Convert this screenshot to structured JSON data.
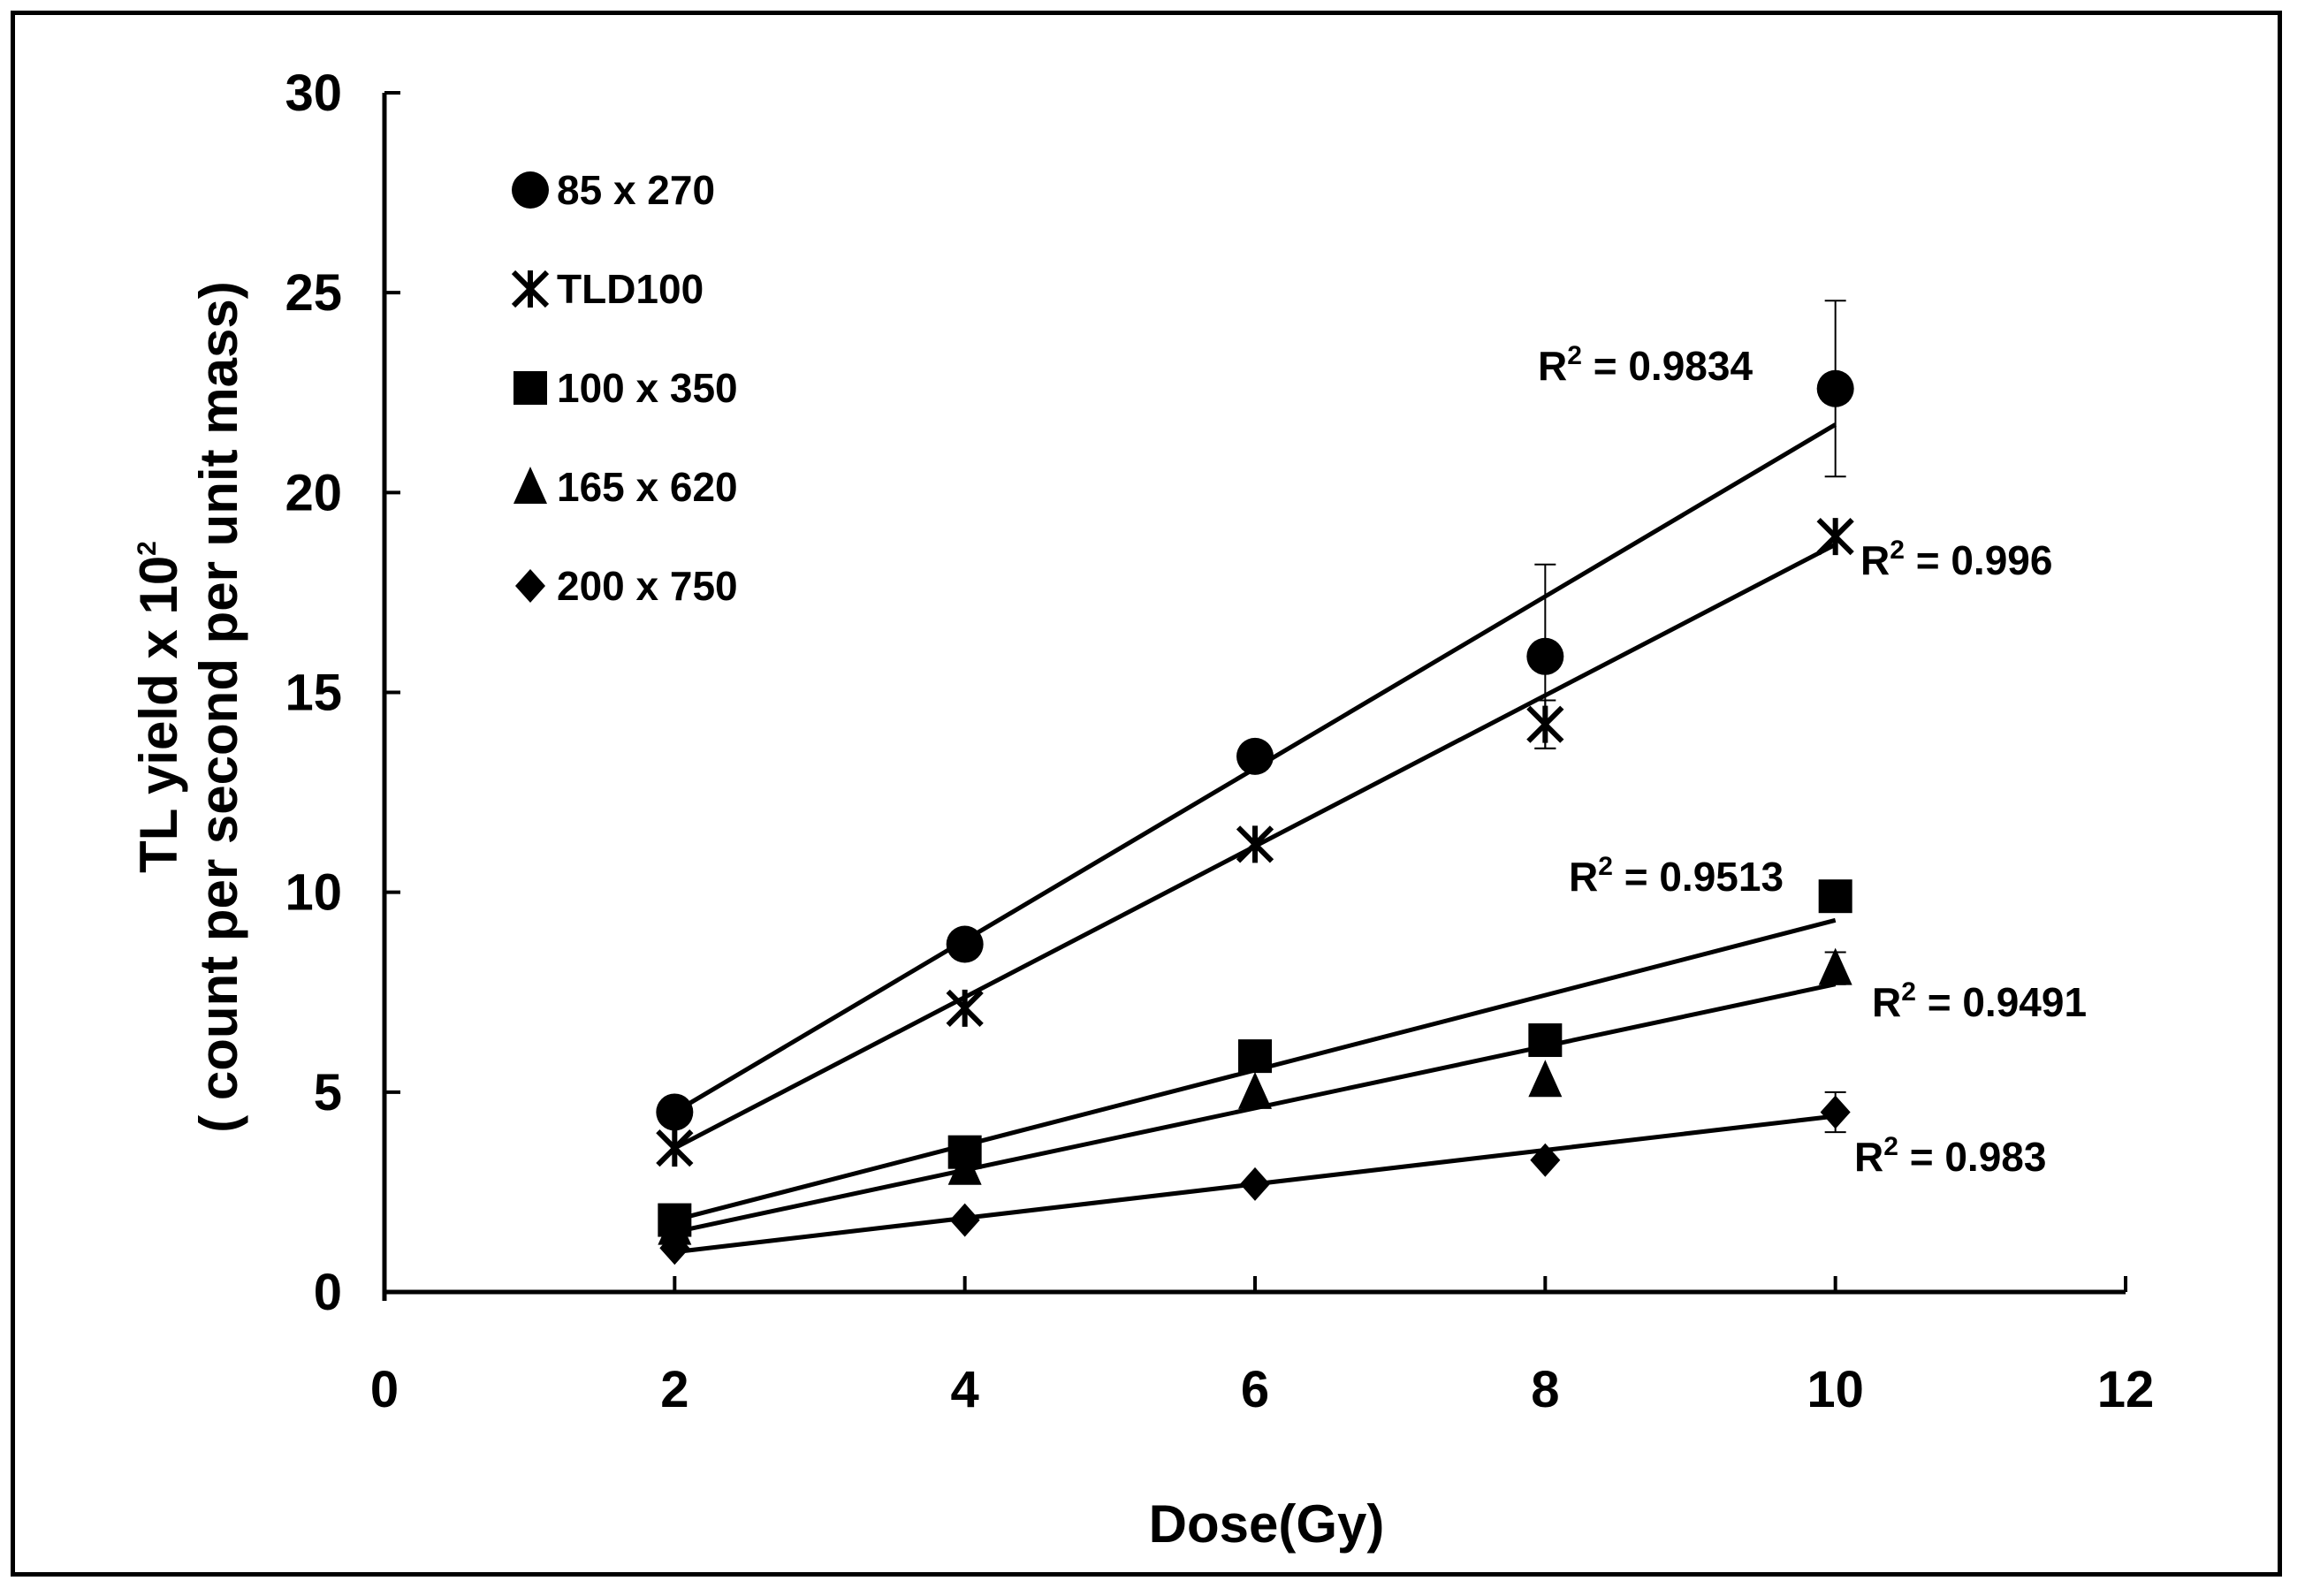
{
  "chart_data": {
    "type": "scatter",
    "title": "",
    "xlabel": "Dose(Gy)",
    "ylabel_line1": "TL yield x 10",
    "ylabel_sup": "2",
    "ylabel_line2": "( count per second per unit mass)",
    "xlim": [
      0,
      12
    ],
    "ylim": [
      0,
      30
    ],
    "xticks": [
      0,
      2,
      4,
      6,
      8,
      10,
      12
    ],
    "yticks": [
      0,
      5,
      10,
      15,
      20,
      25,
      30
    ],
    "xtick_labels": [
      "0",
      "2",
      "4",
      "6",
      "8",
      "10",
      "12"
    ],
    "ytick_labels": [
      "0",
      "5",
      "10",
      "15",
      "20",
      "25",
      "30"
    ],
    "grid": false,
    "legend_position": "top-left",
    "x": [
      2,
      4,
      6,
      8,
      10
    ],
    "series": [
      {
        "name": "85 x 270",
        "marker": "circle",
        "values": [
          4.5,
          8.7,
          13.4,
          15.9,
          22.6
        ],
        "errors": [
          0,
          0,
          0,
          2.3,
          2.2
        ],
        "fit": [
          4.5,
          8.8,
          13.1,
          17.4,
          21.7
        ],
        "r2_label": "R",
        "r2_value": " = 0.9834"
      },
      {
        "name": "TLD100",
        "marker": "asterisk",
        "values": [
          3.6,
          7.1,
          11.2,
          14.2,
          18.9
        ],
        "errors": [
          0,
          0,
          0,
          0.6,
          0
        ],
        "fit": [
          3.6,
          7.4,
          11.1,
          14.9,
          18.7
        ],
        "r2_label": "R",
        "r2_value": " = 0.996"
      },
      {
        "name": "100 x 350",
        "marker": "square",
        "values": [
          1.8,
          3.5,
          5.9,
          6.3,
          9.9
        ],
        "errors": [
          0,
          0,
          0,
          0,
          0
        ],
        "fit": [
          1.8,
          3.7,
          5.5,
          7.4,
          9.3
        ],
        "r2_label": "R",
        "r2_value": " = 0.9513"
      },
      {
        "name": "165 x 620",
        "marker": "triangle",
        "values": [
          1.6,
          3.1,
          5.0,
          5.3,
          8.1
        ],
        "errors": [
          0,
          0,
          0,
          0,
          0.4
        ],
        "fit": [
          1.5,
          3.1,
          4.7,
          6.1,
          7.7
        ],
        "r2_label": "R",
        "r2_value": " = 0.9491"
      },
      {
        "name": "200 x 750",
        "marker": "diamond",
        "values": [
          1.1,
          1.8,
          2.7,
          3.3,
          4.5
        ],
        "errors": [
          0,
          0,
          0,
          0,
          0.5
        ],
        "fit": [
          1.0,
          1.85,
          2.65,
          3.5,
          4.4
        ],
        "r2_label": "R",
        "r2_value": " = 0.983"
      }
    ]
  }
}
